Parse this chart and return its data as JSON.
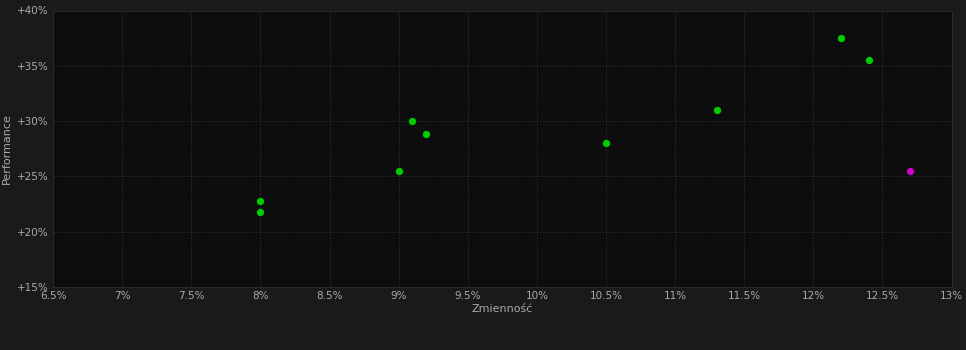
{
  "background_color": "#1a1a1a",
  "plot_bg_color": "#0d0d0d",
  "grid_color": "#2a2a2a",
  "xlabel": "Zmienność",
  "ylabel": "Performance",
  "xlim": [
    0.065,
    0.13
  ],
  "ylim": [
    0.15,
    0.4
  ],
  "xtick_values": [
    0.065,
    0.07,
    0.075,
    0.08,
    0.085,
    0.09,
    0.095,
    0.1,
    0.105,
    0.11,
    0.115,
    0.12,
    0.125,
    0.13
  ],
  "ytick_values": [
    0.15,
    0.2,
    0.25,
    0.3,
    0.35,
    0.4
  ],
  "green_dots": [
    [
      0.08,
      0.228
    ],
    [
      0.08,
      0.218
    ],
    [
      0.09,
      0.255
    ],
    [
      0.091,
      0.3
    ],
    [
      0.092,
      0.288
    ],
    [
      0.105,
      0.28
    ],
    [
      0.113,
      0.31
    ],
    [
      0.122,
      0.375
    ],
    [
      0.124,
      0.355
    ]
  ],
  "magenta_dot": [
    0.127,
    0.255
  ],
  "green_color": "#00cc00",
  "magenta_color": "#cc00cc",
  "dot_size": 28,
  "text_color": "#aaaaaa",
  "tick_label_color": "#aaaaaa",
  "axis_label_fontsize": 8,
  "tick_fontsize": 7.5
}
